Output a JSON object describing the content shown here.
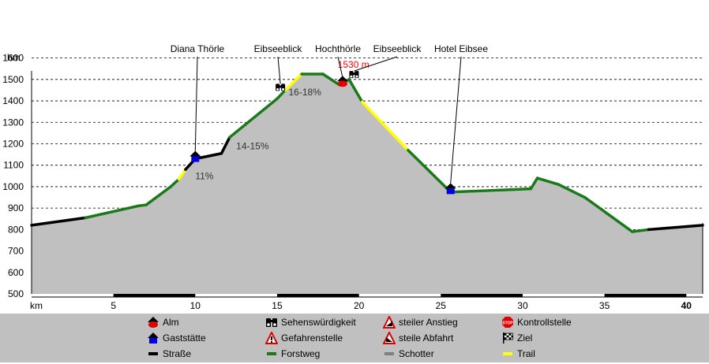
{
  "chart_data": {
    "type": "area",
    "ylabel": "hm",
    "xlabel": "km",
    "xlim": [
      0,
      41
    ],
    "ylim": [
      500,
      1650
    ],
    "y_ticks": [
      500,
      600,
      700,
      800,
      900,
      1000,
      1100,
      1200,
      1300,
      1400,
      1500,
      1600
    ],
    "x_ticks": [
      5,
      10,
      15,
      20,
      25,
      30,
      35,
      40
    ],
    "x_tick_bold": [
      40
    ],
    "grid": "horizontal-dashed",
    "profile": [
      {
        "x": 0,
        "y": 820,
        "surface": "Straße"
      },
      {
        "x": 3.3,
        "y": 855,
        "surface": "Forstweg"
      },
      {
        "x": 6.5,
        "y": 910,
        "surface": "Forstweg"
      },
      {
        "x": 7.0,
        "y": 915,
        "surface": "Forstweg"
      },
      {
        "x": 8.5,
        "y": 1000,
        "surface": "Forstweg"
      },
      {
        "x": 9.0,
        "y": 1035,
        "surface": "Trail"
      },
      {
        "x": 9.4,
        "y": 1080,
        "surface": "Straße"
      },
      {
        "x": 10.0,
        "y": 1130,
        "surface": "Straße"
      },
      {
        "x": 11.6,
        "y": 1155,
        "surface": "Straße"
      },
      {
        "x": 12.1,
        "y": 1230,
        "surface": "Forstweg"
      },
      {
        "x": 15.0,
        "y": 1410,
        "surface": "Forstweg"
      },
      {
        "x": 15.5,
        "y": 1450,
        "surface": "Trail"
      },
      {
        "x": 16.5,
        "y": 1525,
        "surface": "Forstweg"
      },
      {
        "x": 17.8,
        "y": 1525,
        "surface": "Forstweg"
      },
      {
        "x": 18.8,
        "y": 1475,
        "surface": "Forstweg"
      },
      {
        "x": 19.4,
        "y": 1500,
        "surface": "Forstweg"
      },
      {
        "x": 20.2,
        "y": 1395,
        "surface": "Trail"
      },
      {
        "x": 23.0,
        "y": 1170,
        "surface": "Forstweg"
      },
      {
        "x": 25.6,
        "y": 975,
        "surface": "Forstweg"
      },
      {
        "x": 28.0,
        "y": 982,
        "surface": "Forstweg"
      },
      {
        "x": 30.5,
        "y": 990,
        "surface": "Forstweg"
      },
      {
        "x": 30.9,
        "y": 1040,
        "surface": "Forstweg"
      },
      {
        "x": 32.2,
        "y": 1010,
        "surface": "Forstweg"
      },
      {
        "x": 33.8,
        "y": 950,
        "surface": "Forstweg"
      },
      {
        "x": 36.7,
        "y": 790,
        "surface": "Forstweg"
      },
      {
        "x": 37.7,
        "y": 800,
        "surface": "Straße"
      },
      {
        "x": 41.0,
        "y": 820,
        "surface": "Straße"
      }
    ],
    "points_of_interest": [
      {
        "name": "Diana Thörle",
        "x": 10.0,
        "y": 1130,
        "type": "Gaststätte"
      },
      {
        "name": "Eibseeblick",
        "x": 15.2,
        "y": 1450,
        "type": "Sehenswürdigkeit"
      },
      {
        "name": "Hochthörle",
        "x": 19.0,
        "y": 1480,
        "type": "Alm"
      },
      {
        "name": "Eibseeblick",
        "x": 19.7,
        "y": 1510,
        "type": "Sehenswürdigkeit"
      },
      {
        "name": "Hotel Eibsee",
        "x": 25.6,
        "y": 980,
        "type": "Gaststätte"
      }
    ],
    "annotations": [
      {
        "text": "11%",
        "x": 10.0,
        "y": 1035
      },
      {
        "text": "14-15%",
        "x": 12.5,
        "y": 1175
      },
      {
        "text": "16-18%",
        "x": 15.7,
        "y": 1425
      },
      {
        "text": "1530 m",
        "x": 18.7,
        "y": 1555,
        "color": "#ff0000"
      }
    ],
    "legend": [
      {
        "label": "Alm",
        "symbol": "alm-icon"
      },
      {
        "label": "Sehenswürdigkeit",
        "symbol": "binoculars-icon"
      },
      {
        "label": "steiler Anstieg",
        "symbol": "steep-ascent-icon"
      },
      {
        "label": "Kontrollstelle",
        "symbol": "stop-sign-icon"
      },
      {
        "label": "Gaststätte",
        "symbol": "gaststaette-icon"
      },
      {
        "label": "Gefahrenstelle",
        "symbol": "danger-icon"
      },
      {
        "label": "steile Abfahrt",
        "symbol": "steep-descent-icon"
      },
      {
        "label": "Ziel",
        "symbol": "finish-flag-icon"
      },
      {
        "label": "Straße",
        "symbol": "road-swatch"
      },
      {
        "label": "Forstweg",
        "symbol": "forest-road-swatch"
      },
      {
        "label": "Schotter",
        "symbol": "gravel-swatch"
      },
      {
        "label": "Trail",
        "symbol": "trail-swatch"
      }
    ],
    "colors": {
      "Straße": "#000000",
      "Forstweg": "#1a7a1a",
      "Schotter": "#808080",
      "Trail": "#ffff00",
      "fill": "#c0c0c0",
      "alm": "#e00000",
      "gaststaette": "#0000e0"
    }
  }
}
